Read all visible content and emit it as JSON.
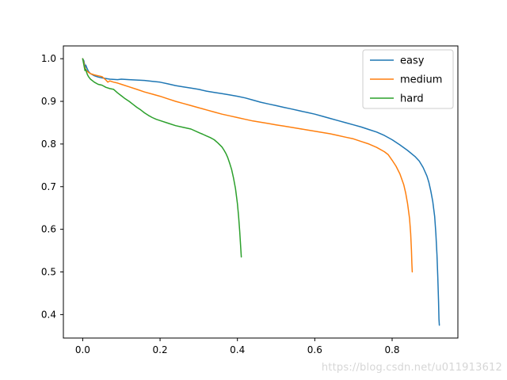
{
  "watermark": "https://blog.csdn.net/u011913612",
  "chart_data": {
    "type": "line",
    "title": "",
    "xlabel": "",
    "ylabel": "",
    "grid": false,
    "legend_position": "upper right",
    "xlim": [
      -0.05,
      0.97
    ],
    "ylim": [
      0.345,
      1.03
    ],
    "xticks": [
      0.0,
      0.2,
      0.4,
      0.6,
      0.8
    ],
    "yticks": [
      0.4,
      0.5,
      0.6,
      0.7,
      0.8,
      0.9,
      1.0
    ],
    "series": [
      {
        "name": "easy",
        "color": "#1f77b4",
        "points": [
          [
            0.0,
            1.0
          ],
          [
            0.003,
            0.995
          ],
          [
            0.005,
            0.985
          ],
          [
            0.006,
            0.975
          ],
          [
            0.008,
            0.985
          ],
          [
            0.01,
            0.98
          ],
          [
            0.015,
            0.97
          ],
          [
            0.02,
            0.965
          ],
          [
            0.03,
            0.96
          ],
          [
            0.04,
            0.957
          ],
          [
            0.05,
            0.955
          ],
          [
            0.07,
            0.952
          ],
          [
            0.09,
            0.951
          ],
          [
            0.1,
            0.952
          ],
          [
            0.12,
            0.951
          ],
          [
            0.14,
            0.95
          ],
          [
            0.16,
            0.949
          ],
          [
            0.18,
            0.947
          ],
          [
            0.2,
            0.945
          ],
          [
            0.22,
            0.941
          ],
          [
            0.24,
            0.937
          ],
          [
            0.26,
            0.934
          ],
          [
            0.28,
            0.931
          ],
          [
            0.3,
            0.928
          ],
          [
            0.32,
            0.924
          ],
          [
            0.34,
            0.921
          ],
          [
            0.36,
            0.918
          ],
          [
            0.38,
            0.915
          ],
          [
            0.4,
            0.912
          ],
          [
            0.42,
            0.908
          ],
          [
            0.44,
            0.903
          ],
          [
            0.46,
            0.898
          ],
          [
            0.48,
            0.894
          ],
          [
            0.5,
            0.89
          ],
          [
            0.52,
            0.886
          ],
          [
            0.54,
            0.882
          ],
          [
            0.56,
            0.878
          ],
          [
            0.58,
            0.874
          ],
          [
            0.6,
            0.87
          ],
          [
            0.62,
            0.865
          ],
          [
            0.64,
            0.86
          ],
          [
            0.66,
            0.855
          ],
          [
            0.68,
            0.85
          ],
          [
            0.7,
            0.845
          ],
          [
            0.72,
            0.84
          ],
          [
            0.74,
            0.834
          ],
          [
            0.76,
            0.828
          ],
          [
            0.78,
            0.82
          ],
          [
            0.8,
            0.81
          ],
          [
            0.82,
            0.798
          ],
          [
            0.84,
            0.785
          ],
          [
            0.86,
            0.77
          ],
          [
            0.87,
            0.76
          ],
          [
            0.88,
            0.745
          ],
          [
            0.89,
            0.725
          ],
          [
            0.895,
            0.71
          ],
          [
            0.9,
            0.69
          ],
          [
            0.905,
            0.665
          ],
          [
            0.91,
            0.63
          ],
          [
            0.913,
            0.59
          ],
          [
            0.916,
            0.54
          ],
          [
            0.918,
            0.49
          ],
          [
            0.92,
            0.43
          ],
          [
            0.921,
            0.39
          ],
          [
            0.922,
            0.375
          ]
        ]
      },
      {
        "name": "medium",
        "color": "#ff7f0e",
        "points": [
          [
            0.0,
            1.0
          ],
          [
            0.003,
            0.99
          ],
          [
            0.005,
            0.98
          ],
          [
            0.008,
            0.975
          ],
          [
            0.01,
            0.972
          ],
          [
            0.015,
            0.968
          ],
          [
            0.02,
            0.965
          ],
          [
            0.03,
            0.962
          ],
          [
            0.04,
            0.96
          ],
          [
            0.05,
            0.958
          ],
          [
            0.06,
            0.95
          ],
          [
            0.065,
            0.945
          ],
          [
            0.07,
            0.948
          ],
          [
            0.08,
            0.945
          ],
          [
            0.09,
            0.943
          ],
          [
            0.1,
            0.94
          ],
          [
            0.12,
            0.934
          ],
          [
            0.14,
            0.928
          ],
          [
            0.16,
            0.922
          ],
          [
            0.18,
            0.917
          ],
          [
            0.2,
            0.912
          ],
          [
            0.22,
            0.906
          ],
          [
            0.24,
            0.9
          ],
          [
            0.26,
            0.895
          ],
          [
            0.28,
            0.89
          ],
          [
            0.3,
            0.885
          ],
          [
            0.32,
            0.88
          ],
          [
            0.34,
            0.875
          ],
          [
            0.36,
            0.87
          ],
          [
            0.38,
            0.866
          ],
          [
            0.4,
            0.862
          ],
          [
            0.42,
            0.858
          ],
          [
            0.44,
            0.854
          ],
          [
            0.46,
            0.851
          ],
          [
            0.48,
            0.848
          ],
          [
            0.5,
            0.845
          ],
          [
            0.52,
            0.842
          ],
          [
            0.54,
            0.839
          ],
          [
            0.56,
            0.836
          ],
          [
            0.58,
            0.833
          ],
          [
            0.6,
            0.83
          ],
          [
            0.62,
            0.827
          ],
          [
            0.64,
            0.824
          ],
          [
            0.66,
            0.82
          ],
          [
            0.68,
            0.816
          ],
          [
            0.7,
            0.812
          ],
          [
            0.72,
            0.806
          ],
          [
            0.74,
            0.8
          ],
          [
            0.76,
            0.792
          ],
          [
            0.78,
            0.782
          ],
          [
            0.79,
            0.775
          ],
          [
            0.8,
            0.762
          ],
          [
            0.81,
            0.748
          ],
          [
            0.82,
            0.73
          ],
          [
            0.83,
            0.705
          ],
          [
            0.835,
            0.685
          ],
          [
            0.84,
            0.66
          ],
          [
            0.845,
            0.625
          ],
          [
            0.848,
            0.59
          ],
          [
            0.85,
            0.55
          ],
          [
            0.851,
            0.52
          ],
          [
            0.852,
            0.5
          ]
        ]
      },
      {
        "name": "hard",
        "color": "#2ca02c",
        "points": [
          [
            0.0,
            1.0
          ],
          [
            0.002,
            0.99
          ],
          [
            0.004,
            0.98
          ],
          [
            0.006,
            0.972
          ],
          [
            0.008,
            0.975
          ],
          [
            0.01,
            0.968
          ],
          [
            0.012,
            0.963
          ],
          [
            0.015,
            0.958
          ],
          [
            0.02,
            0.952
          ],
          [
            0.03,
            0.945
          ],
          [
            0.04,
            0.94
          ],
          [
            0.05,
            0.938
          ],
          [
            0.06,
            0.933
          ],
          [
            0.07,
            0.93
          ],
          [
            0.08,
            0.928
          ],
          [
            0.09,
            0.92
          ],
          [
            0.1,
            0.913
          ],
          [
            0.11,
            0.906
          ],
          [
            0.12,
            0.9
          ],
          [
            0.13,
            0.893
          ],
          [
            0.14,
            0.886
          ],
          [
            0.15,
            0.88
          ],
          [
            0.16,
            0.873
          ],
          [
            0.17,
            0.867
          ],
          [
            0.18,
            0.862
          ],
          [
            0.19,
            0.858
          ],
          [
            0.2,
            0.855
          ],
          [
            0.22,
            0.849
          ],
          [
            0.24,
            0.843
          ],
          [
            0.26,
            0.839
          ],
          [
            0.28,
            0.835
          ],
          [
            0.3,
            0.827
          ],
          [
            0.31,
            0.823
          ],
          [
            0.32,
            0.819
          ],
          [
            0.33,
            0.815
          ],
          [
            0.34,
            0.81
          ],
          [
            0.35,
            0.802
          ],
          [
            0.36,
            0.793
          ],
          [
            0.365,
            0.786
          ],
          [
            0.37,
            0.778
          ],
          [
            0.375,
            0.768
          ],
          [
            0.38,
            0.755
          ],
          [
            0.385,
            0.74
          ],
          [
            0.39,
            0.72
          ],
          [
            0.395,
            0.695
          ],
          [
            0.4,
            0.66
          ],
          [
            0.403,
            0.63
          ],
          [
            0.406,
            0.595
          ],
          [
            0.408,
            0.565
          ],
          [
            0.41,
            0.535
          ]
        ]
      }
    ]
  }
}
